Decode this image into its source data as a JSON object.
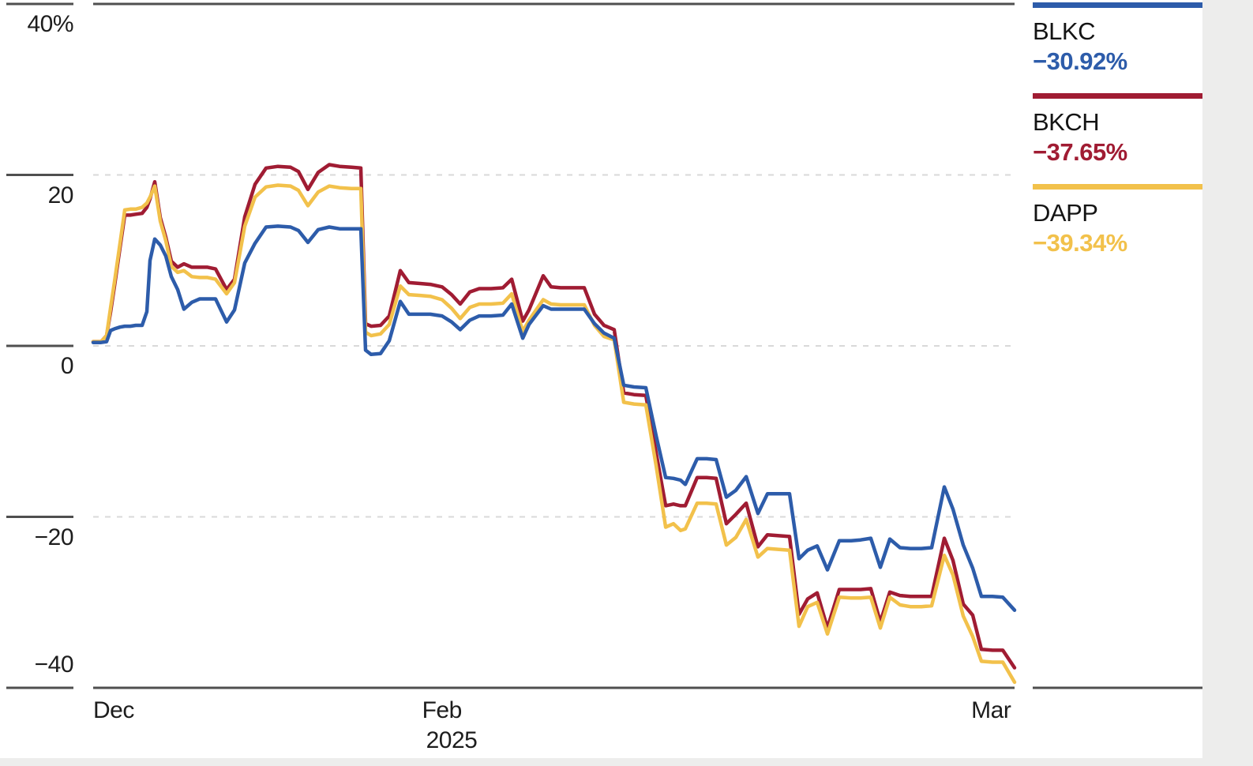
{
  "chart_data": {
    "type": "line",
    "title": "",
    "unit": "%",
    "legend_position": "top-right",
    "y_axis": {
      "range": [
        -40,
        40
      ],
      "ticks": [
        40,
        20,
        0,
        -20,
        -40
      ],
      "tick_labels": [
        "40%",
        "20",
        "0",
        "−20",
        "−40"
      ],
      "gridlines": "dashed at 20 / 0 / -20, solid axis line at top (40) and bottom (-40)"
    },
    "x_axis": {
      "ticks": [
        {
          "label": "Dec",
          "pos": 0.0
        },
        {
          "label": "Feb",
          "pos": 0.357,
          "sublabel": "2025"
        },
        {
          "label": "Mar",
          "pos": 0.953
        }
      ]
    },
    "x": [
      0,
      0.0086,
      0.0146,
      0.0189,
      0.0231,
      0.0291,
      0.0343,
      0.0403,
      0.0463,
      0.0531,
      0.0583,
      0.0617,
      0.0668,
      0.0728,
      0.0788,
      0.0848,
      0.0917,
      0.0985,
      0.1071,
      0.1157,
      0.1242,
      0.1328,
      0.1448,
      0.1534,
      0.1645,
      0.1757,
      0.1877,
      0.2005,
      0.2142,
      0.2228,
      0.2331,
      0.2442,
      0.2562,
      0.2674,
      0.2802,
      0.2905,
      0.2956,
      0.3016,
      0.3119,
      0.3213,
      0.3333,
      0.3427,
      0.3548,
      0.3659,
      0.3787,
      0.389,
      0.3984,
      0.4087,
      0.419,
      0.4319,
      0.4447,
      0.4542,
      0.4662,
      0.473,
      0.4884,
      0.497,
      0.5073,
      0.5201,
      0.533,
      0.5441,
      0.5544,
      0.5655,
      0.5758,
      0.587,
      0.5998,
      0.611,
      0.6213,
      0.6298,
      0.6375,
      0.6427,
      0.6555,
      0.6658,
      0.6761,
      0.6872,
      0.6975,
      0.7087,
      0.7215,
      0.7318,
      0.7429,
      0.7558,
      0.7661,
      0.7755,
      0.7858,
      0.7969,
      0.8098,
      0.8226,
      0.8329,
      0.844,
      0.8543,
      0.8646,
      0.8757,
      0.8869,
      0.8989,
      0.91,
      0.9237,
      0.9332,
      0.9443,
      0.9546,
      0.964,
      0.976,
      0.9872,
      1
    ],
    "series": [
      {
        "name": "BLKC",
        "final_label": "−30.92%",
        "final_value": -30.92,
        "color": "#2d5caa",
        "values": [
          0.4,
          0.4,
          0.5,
          1.8,
          2.0,
          2.2,
          2.3,
          2.3,
          2.4,
          2.4,
          4.0,
          10.0,
          12.5,
          11.8,
          10.5,
          8.1,
          6.6,
          4.3,
          5.1,
          5.5,
          5.5,
          5.5,
          2.8,
          4.2,
          9.7,
          12.0,
          13.9,
          14.0,
          13.9,
          13.5,
          12.1,
          13.6,
          13.9,
          13.7,
          13.7,
          13.7,
          -0.5,
          -1.0,
          -0.9,
          0.6,
          5.2,
          3.7,
          3.7,
          3.7,
          3.5,
          2.8,
          1.9,
          3.0,
          3.5,
          3.5,
          3.6,
          4.9,
          0.9,
          2.5,
          4.7,
          4.3,
          4.3,
          4.3,
          4.3,
          2.6,
          1.5,
          0.9,
          -4.6,
          -4.8,
          -4.9,
          -10.5,
          -15.4,
          -15.5,
          -15.7,
          -16.2,
          -13.2,
          -13.2,
          -13.3,
          -17.7,
          -16.9,
          -15.3,
          -19.6,
          -17.3,
          -17.3,
          -17.3,
          -24.9,
          -23.9,
          -23.4,
          -26.2,
          -22.8,
          -22.8,
          -22.7,
          -22.5,
          -25.9,
          -22.6,
          -23.6,
          -23.7,
          -23.7,
          -23.6,
          -16.5,
          -19.1,
          -23.3,
          -26.0,
          -29.3,
          -29.3,
          -29.4,
          -30.92
        ]
      },
      {
        "name": "BKCH",
        "final_label": "−37.65%",
        "final_value": -37.65,
        "color": "#a01c33",
        "values": [
          0.5,
          0.5,
          1.2,
          4.0,
          7.0,
          11.5,
          15.3,
          15.3,
          15.4,
          15.5,
          16.2,
          17.2,
          19.2,
          15.0,
          12.7,
          9.9,
          9.2,
          9.6,
          9.2,
          9.2,
          9.2,
          9.0,
          6.6,
          7.8,
          15.1,
          18.9,
          20.8,
          21.0,
          20.9,
          20.4,
          18.3,
          20.3,
          21.2,
          21.0,
          20.9,
          20.8,
          2.6,
          2.3,
          2.4,
          3.5,
          8.8,
          7.4,
          7.3,
          7.2,
          6.9,
          6.0,
          4.9,
          6.3,
          6.7,
          6.7,
          6.8,
          7.8,
          2.9,
          4.2,
          8.2,
          6.9,
          6.8,
          6.8,
          6.8,
          3.7,
          2.4,
          1.9,
          -5.5,
          -5.7,
          -5.8,
          -12.5,
          -18.7,
          -18.5,
          -18.7,
          -18.7,
          -15.4,
          -15.4,
          -15.5,
          -20.8,
          -19.7,
          -18.4,
          -23.5,
          -22.1,
          -22.2,
          -22.3,
          -31.4,
          -29.6,
          -28.9,
          -33.0,
          -28.5,
          -28.5,
          -28.5,
          -28.4,
          -32.3,
          -28.8,
          -29.2,
          -29.3,
          -29.3,
          -29.3,
          -22.5,
          -25.1,
          -30.2,
          -31.5,
          -35.5,
          -35.6,
          -35.6,
          -37.65
        ]
      },
      {
        "name": "DAPP",
        "final_label": "−39.34%",
        "final_value": -39.34,
        "color": "#f2c14b",
        "values": [
          0.5,
          0.5,
          1.2,
          4.5,
          7.5,
          12.0,
          15.9,
          16.0,
          16.0,
          16.2,
          16.7,
          17.4,
          18.7,
          14.6,
          12.3,
          9.3,
          8.6,
          8.8,
          8.1,
          8.0,
          8.0,
          7.8,
          6.1,
          7.4,
          14.0,
          17.4,
          18.6,
          18.8,
          18.7,
          18.2,
          16.4,
          18.0,
          18.7,
          18.5,
          18.4,
          18.4,
          1.6,
          1.2,
          1.4,
          2.5,
          7.0,
          6.0,
          5.9,
          5.8,
          5.4,
          4.4,
          3.2,
          4.5,
          4.9,
          4.9,
          5.0,
          6.1,
          1.7,
          3.0,
          5.4,
          4.9,
          4.8,
          4.8,
          4.8,
          2.4,
          1.1,
          0.7,
          -6.6,
          -6.8,
          -6.9,
          -14.0,
          -21.2,
          -20.8,
          -21.6,
          -21.4,
          -18.4,
          -18.4,
          -18.5,
          -23.3,
          -22.4,
          -20.3,
          -24.7,
          -23.7,
          -23.8,
          -23.9,
          -32.8,
          -30.5,
          -30.0,
          -33.7,
          -29.4,
          -29.5,
          -29.5,
          -29.4,
          -33.0,
          -29.4,
          -30.3,
          -30.5,
          -30.5,
          -30.4,
          -24.5,
          -26.8,
          -31.6,
          -34.0,
          -36.9,
          -37.0,
          -37.0,
          -39.34
        ]
      }
    ]
  }
}
